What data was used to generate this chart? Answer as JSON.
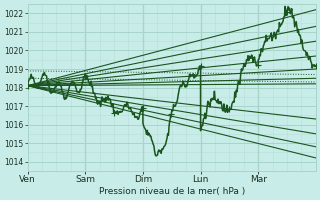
{
  "bg_color": "#c8ece8",
  "grid_major_color": "#a8d4cc",
  "grid_minor_color": "#b8dcd8",
  "line_color": "#1a5520",
  "ylim": [
    1013.5,
    1022.5
  ],
  "yticks": [
    1014,
    1015,
    1016,
    1017,
    1018,
    1019,
    1020,
    1021,
    1022
  ],
  "day_labels": [
    "Ven",
    "Sam",
    "Dim",
    "Lun",
    "Mar"
  ],
  "day_positions": [
    0,
    24,
    48,
    72,
    96
  ],
  "total_hours": 120,
  "xlabel": "Pression niveau de la mer( hPa )",
  "fan_lines": [
    [
      0,
      1018.1,
      120,
      1022.2
    ],
    [
      0,
      1018.1,
      120,
      1021.3
    ],
    [
      0,
      1018.1,
      120,
      1020.5
    ],
    [
      0,
      1018.1,
      120,
      1019.7
    ],
    [
      0,
      1018.1,
      120,
      1019.0
    ],
    [
      0,
      1018.1,
      120,
      1018.5
    ],
    [
      0,
      1018.1,
      120,
      1018.2
    ],
    [
      0,
      1018.1,
      120,
      1016.3
    ],
    [
      0,
      1018.1,
      120,
      1015.5
    ],
    [
      0,
      1018.1,
      120,
      1014.8
    ],
    [
      0,
      1018.1,
      120,
      1014.2
    ]
  ],
  "horiz_lines": [
    [
      0,
      1018.9,
      120,
      1018.7
    ],
    [
      0,
      1018.5,
      120,
      1018.3
    ]
  ]
}
